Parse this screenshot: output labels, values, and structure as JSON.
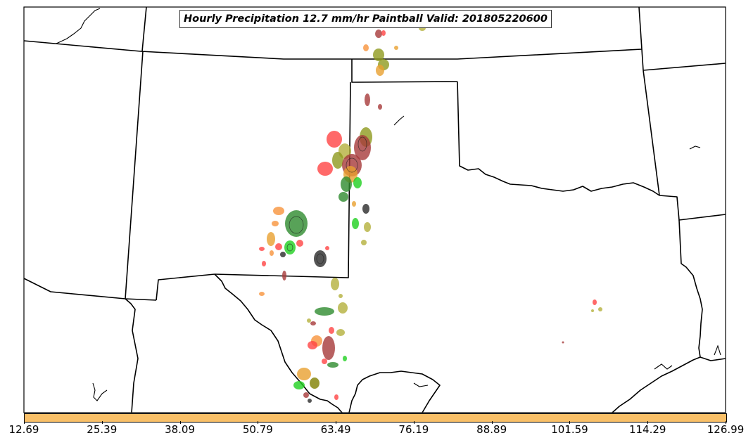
{
  "title": "Hourly Precipitation 12.7 mm/hr Paintball Valid: 201805220600",
  "colors": {
    "colorbar_fill": "#f9c068",
    "boundaries": "#000000",
    "blob_palette": [
      "#ff4444",
      "#a63a3a",
      "#8f9a1e",
      "#e8a030",
      "#f7943c",
      "#2e8b2e",
      "#1fcf1f",
      "#b4b03c",
      "#2b2b2b",
      "#808000"
    ]
  },
  "colorbar": {
    "ticks": [
      "12.69",
      "25.39",
      "38.09",
      "50.79",
      "63.49",
      "76.19",
      "88.89",
      "101.59",
      "114.29",
      "126.99"
    ]
  }
}
